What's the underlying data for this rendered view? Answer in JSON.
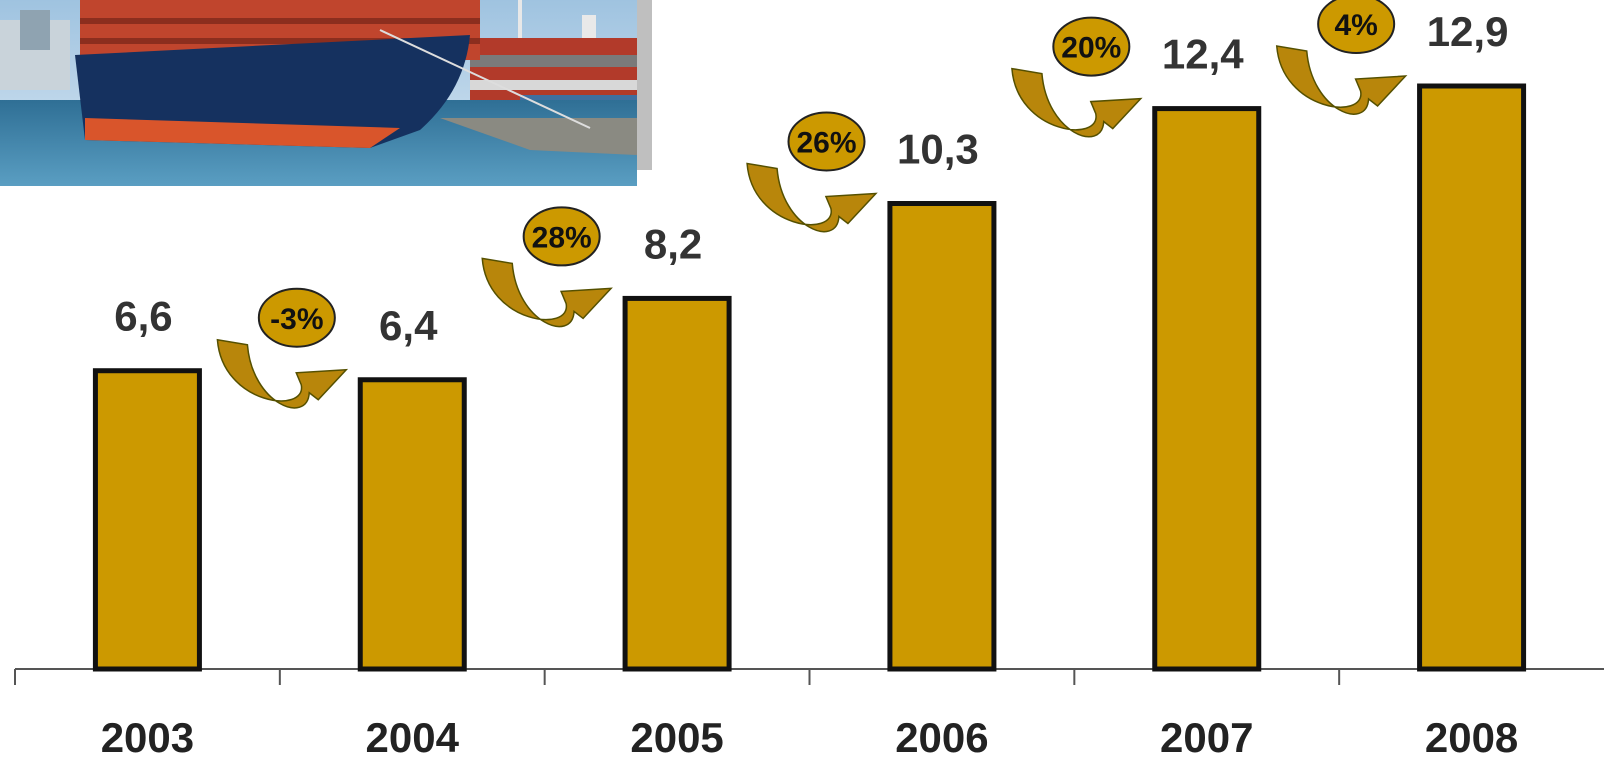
{
  "colors": {
    "bar_fill": "#CC9900",
    "bar_stroke": "#111111",
    "arrow_fill": "#B8860B",
    "badge_fill": "#CC9900",
    "axis": "#555555"
  },
  "photo": {
    "icon": "container-ship-photo"
  },
  "chart_data": {
    "type": "bar",
    "categories": [
      "2003",
      "2004",
      "2005",
      "2006",
      "2007",
      "2008"
    ],
    "values": [
      6.6,
      6.4,
      8.2,
      10.3,
      12.4,
      12.9
    ],
    "value_labels": [
      "6,6",
      "6,4",
      "8,2",
      "10,3",
      "12,4",
      "12,9"
    ],
    "growth_labels": [
      "-3%",
      "28%",
      "26%",
      "20%",
      "4%"
    ],
    "title": "",
    "xlabel": "",
    "ylabel": "",
    "ylim": [
      0,
      13.5
    ],
    "grid": false,
    "legend": "none"
  }
}
